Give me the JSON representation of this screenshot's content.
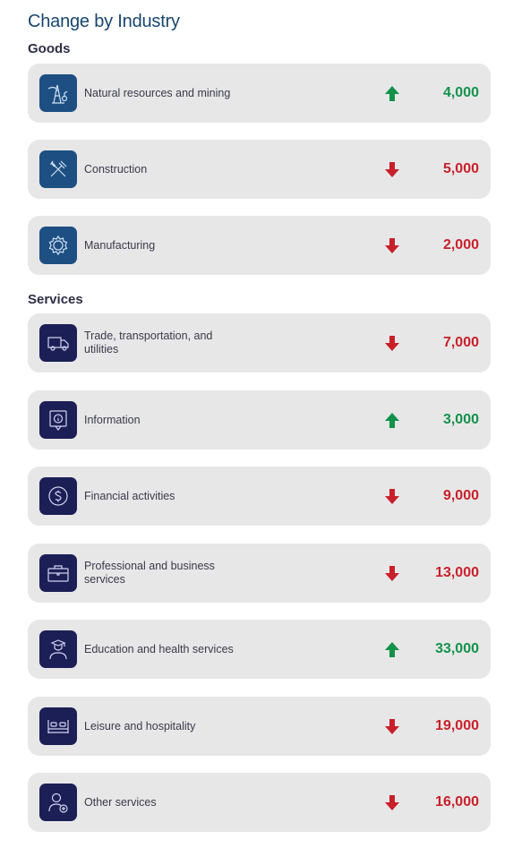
{
  "title": "Change by Industry",
  "colors": {
    "up": "#12924a",
    "down": "#c8202a",
    "goods_icon_bg": "#1d4f82",
    "services_icon_bg": "#1c1f55"
  },
  "goods": {
    "heading": "Goods",
    "items": [
      {
        "label": "Natural resources and mining",
        "value": "4,000",
        "direction": "up",
        "icon": "oil-derrick-icon"
      },
      {
        "label": "Construction",
        "value": "5,000",
        "direction": "down",
        "icon": "hammer-wrench-icon"
      },
      {
        "label": "Manufacturing",
        "value": "2,000",
        "direction": "down",
        "icon": "gear-icon"
      }
    ]
  },
  "services": {
    "heading": "Services",
    "items": [
      {
        "label": "Trade, transportation, and utilities",
        "value": "7,000",
        "direction": "down",
        "icon": "truck-icon"
      },
      {
        "label": "Information",
        "value": "3,000",
        "direction": "up",
        "icon": "info-icon"
      },
      {
        "label": "Financial activities",
        "value": "9,000",
        "direction": "down",
        "icon": "dollar-icon"
      },
      {
        "label": "Professional and business services",
        "value": "13,000",
        "direction": "down",
        "icon": "briefcase-icon"
      },
      {
        "label": "Education and health services",
        "value": "33,000",
        "direction": "up",
        "icon": "graduate-icon"
      },
      {
        "label": "Leisure and hospitality",
        "value": "19,000",
        "direction": "down",
        "icon": "bed-icon"
      },
      {
        "label": "Other services",
        "value": "16,000",
        "direction": "down",
        "icon": "person-plus-icon"
      }
    ]
  }
}
